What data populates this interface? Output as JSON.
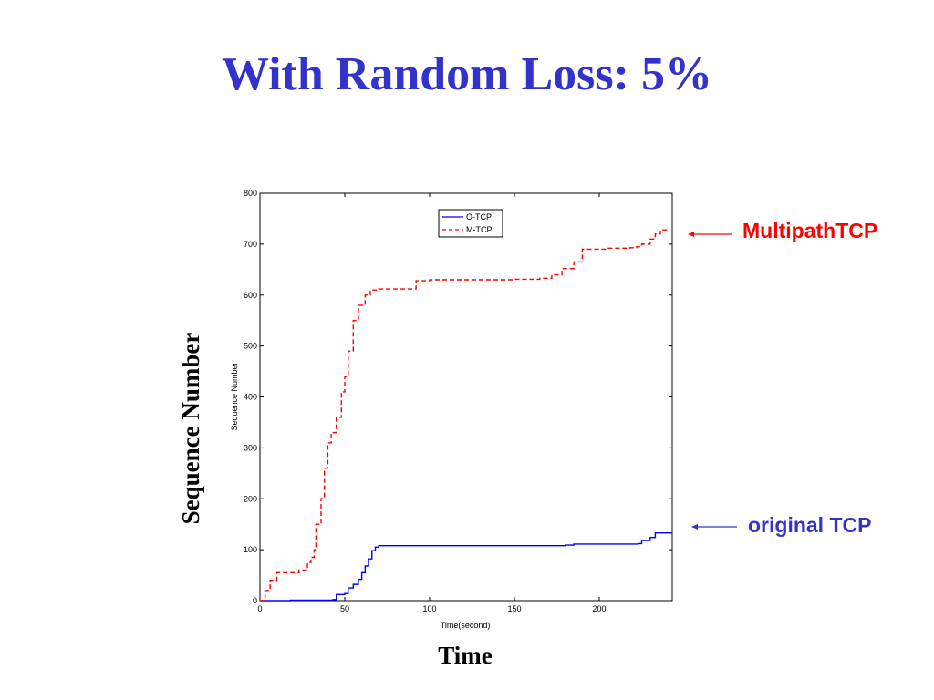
{
  "slide": {
    "title": "With Random Loss: 5%"
  },
  "chart_data": {
    "type": "line",
    "xlabel": "Time(second)",
    "ylabel": "Sequence Number",
    "outer_xlabel": "Time",
    "outer_ylabel": "Sequence Number",
    "xlim": [
      0,
      243
    ],
    "ylim": [
      0,
      800
    ],
    "xticks": [
      0,
      50,
      100,
      150,
      200
    ],
    "yticks": [
      0,
      100,
      200,
      300,
      400,
      500,
      600,
      700,
      800
    ],
    "legend_position": "top-center",
    "series": [
      {
        "name": "O-TCP",
        "color": "#0000ff",
        "dash": "solid",
        "callout": "original TCP",
        "callout_color": "#3333cc",
        "x": [
          0,
          18,
          43,
          45,
          50,
          52,
          55,
          58,
          60,
          62,
          64,
          66,
          68,
          70,
          100,
          180,
          185,
          223,
          225,
          230,
          233,
          243
        ],
        "y": [
          0,
          1,
          2,
          12,
          14,
          25,
          32,
          42,
          55,
          68,
          82,
          98,
          105,
          108,
          108,
          109,
          111,
          112,
          118,
          124,
          133,
          133
        ]
      },
      {
        "name": "M-TCP",
        "color": "#ff0000",
        "dash": "dashed",
        "callout": "MultipathTCP",
        "callout_color": "#ff0000",
        "x": [
          0,
          3,
          6,
          10,
          20,
          23,
          28,
          30,
          32,
          33,
          36,
          38,
          40,
          42,
          45,
          48,
          50,
          52,
          55,
          58,
          62,
          65,
          70,
          80,
          90,
          92,
          100,
          120,
          150,
          165,
          172,
          178,
          185,
          190,
          200,
          205,
          210,
          218,
          222,
          225,
          230,
          233,
          236,
          240
        ],
        "y": [
          0,
          20,
          40,
          55,
          55,
          60,
          75,
          85,
          100,
          150,
          200,
          260,
          310,
          330,
          360,
          410,
          440,
          490,
          550,
          580,
          600,
          610,
          612,
          612,
          612,
          628,
          630,
          630,
          631,
          633,
          640,
          652,
          665,
          690,
          690,
          692,
          692,
          693,
          695,
          700,
          710,
          720,
          728,
          730
        ]
      }
    ]
  }
}
